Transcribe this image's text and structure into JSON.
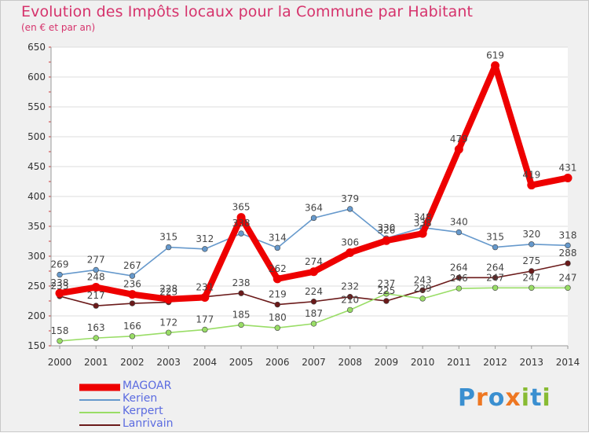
{
  "chart_data": {
    "type": "line",
    "title": "Evolution des Impôts locaux pour la Commune par Habitant",
    "subtitle": "(en € et par an)",
    "xlabel": "",
    "ylabel": "",
    "ylim": [
      150,
      650
    ],
    "yticks": [
      "150",
      "200",
      "250",
      "300",
      "350",
      "400",
      "450",
      "500",
      "550",
      "600",
      "650"
    ],
    "categories": [
      "2000",
      "2001",
      "2002",
      "2003",
      "2004",
      "2005",
      "2006",
      "2007",
      "2008",
      "2009",
      "2010",
      "2011",
      "2012",
      "2013",
      "2014"
    ],
    "series": [
      {
        "name": "Lanrivain",
        "color": "#6b1a1a",
        "values": [
          233,
          217,
          221,
          223,
          232,
          238,
          219,
          224,
          232,
          225,
          243,
          264,
          264,
          275,
          288
        ],
        "labels": [
          "233",
          "217",
          "",
          "223",
          "",
          "238",
          "219",
          "224",
          "232",
          "225",
          "243",
          "264",
          "264",
          "275",
          "288"
        ]
      },
      {
        "name": "Kerpert",
        "color": "#99dd66",
        "values": [
          158,
          163,
          166,
          172,
          177,
          185,
          180,
          187,
          210,
          237,
          229,
          246,
          247,
          247,
          247
        ],
        "labels": [
          "158",
          "163",
          "166",
          "172",
          "177",
          "185",
          "180",
          "187",
          "210",
          "237",
          "229",
          "246",
          "247",
          "247",
          "247"
        ]
      },
      {
        "name": "Kerien",
        "color": "#6699cc",
        "values": [
          269,
          277,
          267,
          315,
          312,
          338,
          314,
          364,
          379,
          330,
          348,
          340,
          315,
          320,
          318
        ],
        "labels": [
          "269",
          "277",
          "267",
          "315",
          "312",
          "338",
          "314",
          "364",
          "379",
          "330",
          "348",
          "340",
          "315",
          "320",
          "318"
        ]
      },
      {
        "name": "MAGOAR",
        "color": "#ee0000",
        "values": [
          238,
          248,
          236,
          228,
          231,
          365,
          262,
          274,
          306,
          326,
          338,
          479,
          619,
          419,
          431
        ],
        "labels": [
          "238",
          "248",
          "236",
          "228",
          "231",
          "365",
          "262",
          "274",
          "306",
          "326",
          "338",
          "479",
          "619",
          "419",
          "431"
        ]
      }
    ],
    "legend": [
      {
        "name": "MAGOAR",
        "color": "#ee0000"
      },
      {
        "name": "Kerien",
        "color": "#6699cc"
      },
      {
        "name": "Kerpert",
        "color": "#99dd66"
      },
      {
        "name": "Lanrivain",
        "color": "#6b1a1a"
      }
    ]
  },
  "logo": {
    "text": "Proxiti",
    "letters": [
      "P",
      "r",
      "o",
      "x",
      "i",
      "t",
      "i"
    ],
    "colors": [
      "#3a8fd0",
      "#ee7722",
      "#3a8fd0",
      "#ee7722",
      "#88bb33",
      "#3a8fd0",
      "#88bb33"
    ]
  }
}
